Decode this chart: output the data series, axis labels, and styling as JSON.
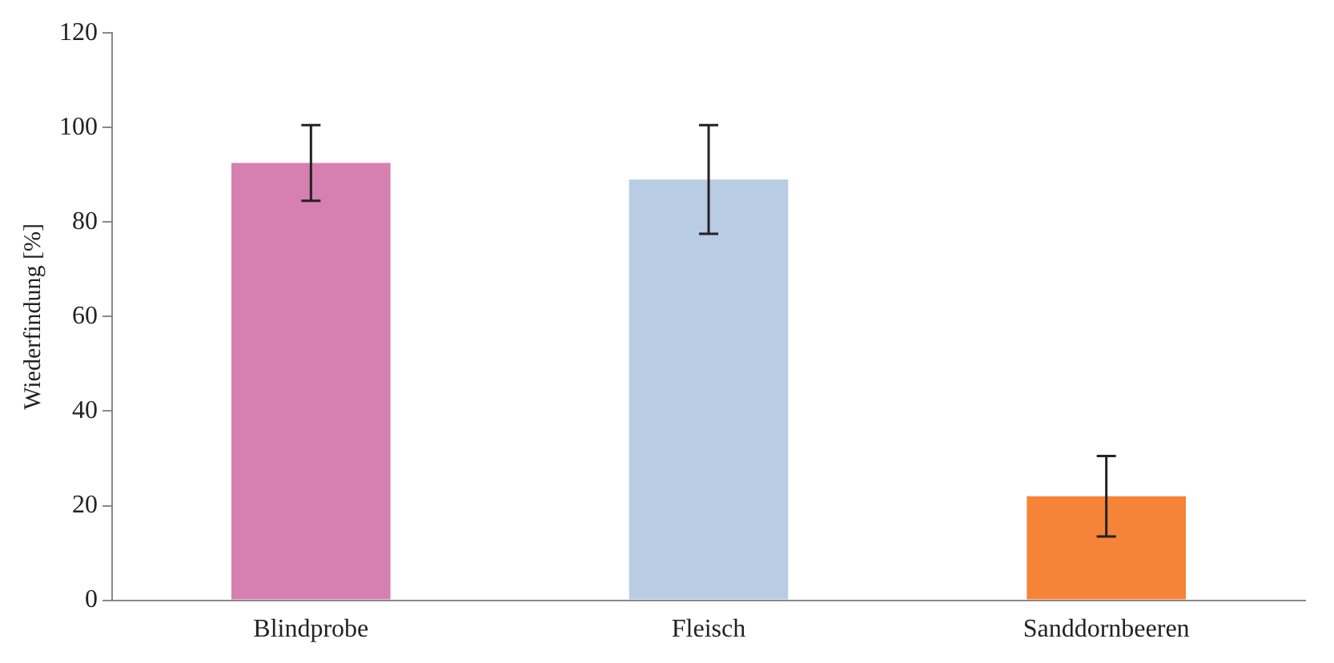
{
  "chart_data": {
    "type": "bar",
    "ylabel": "Wiederfindung [%]",
    "categories": [
      "Blindprobe",
      "Fleisch",
      "Sanddornbeeren"
    ],
    "values": [
      92.5,
      89,
      22
    ],
    "colors": [
      "#d580b0",
      "#b8cce4",
      "#f58439"
    ],
    "errors": [
      8,
      11.5,
      8.5
    ],
    "ylim": [
      0,
      120
    ],
    "yticks": [
      0,
      20,
      40,
      60,
      80,
      100,
      120
    ],
    "grid": false,
    "legend": false
  }
}
